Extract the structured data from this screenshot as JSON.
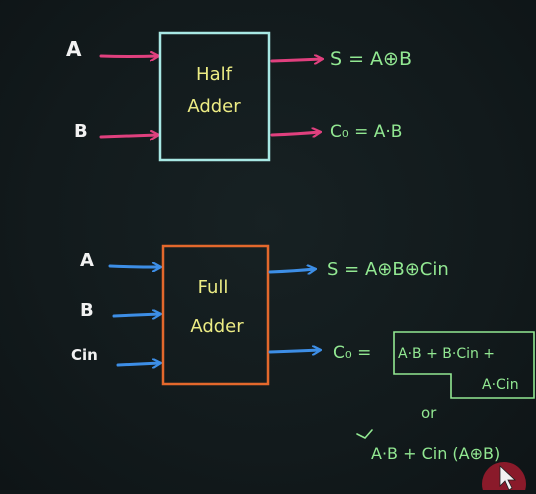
{
  "half_adder": {
    "input_a": "A",
    "input_b": "B",
    "label_line1": "Half",
    "label_line2": "Adder",
    "sum_output": "S = A⊕B",
    "carry_output": "C₀ = A·B"
  },
  "full_adder": {
    "input_a": "A",
    "input_b": "B",
    "input_cin": "Cin",
    "label_line1": "Full",
    "label_line2": "Adder",
    "sum_output": "S = A⊕B⊕Cin",
    "carry_output_eq": "C₀ =",
    "carry_expr_line1": "A·B + B·Cin +",
    "carry_expr_line2": "A·Cin",
    "or_word": "or",
    "carry_alt_expr": "A·B + Cin (A⊕B)"
  },
  "colors": {
    "half_input_arrow": "#e0407e",
    "half_box": "#a8e8e4",
    "full_input_arrow": "#3d8ee6",
    "full_box": "#e3682c",
    "label_text": "#ecec84",
    "output_text": "#92e892",
    "plain_text": "#f2f2f2",
    "cursor": "#8a1a2a"
  },
  "icons": {
    "cursor": "pen-cursor-icon"
  }
}
